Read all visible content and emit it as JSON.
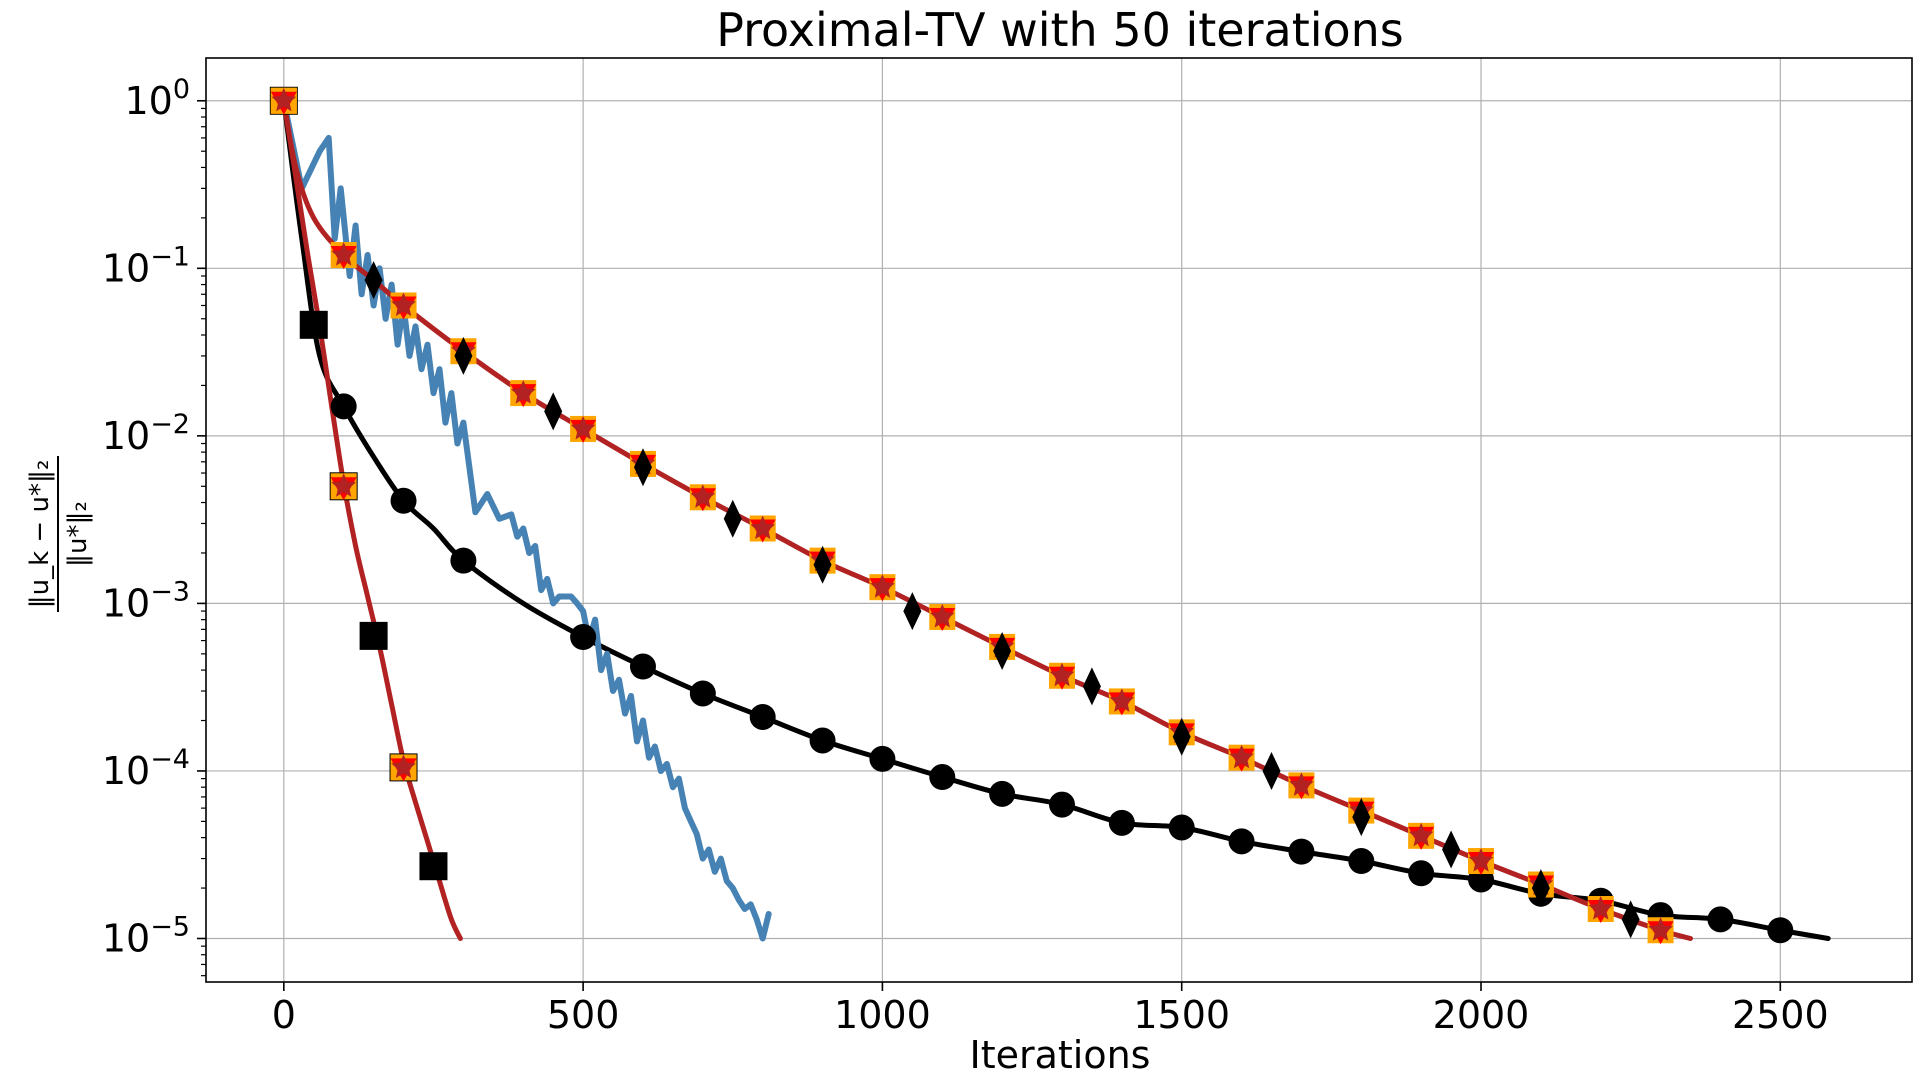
{
  "chart_data": {
    "type": "line",
    "title": "Proximal-TV with 50 iterations",
    "xlabel": "Iterations",
    "ylabel": {
      "numerator": "‖u_k − u*‖₂",
      "denominator": "‖u*‖₂"
    },
    "xscale": "linear",
    "yscale": "log",
    "xlim": [
      -130,
      2720
    ],
    "ylim": [
      5.5e-06,
      1.8
    ],
    "grid": true,
    "xticks": [
      0,
      500,
      1000,
      1500,
      2000,
      2500
    ],
    "xtick_labels": [
      "0",
      "500",
      "1000",
      "1500",
      "2000",
      "2500"
    ],
    "ytick_exponents": [
      0,
      -1,
      -2,
      -3,
      -4,
      -5
    ],
    "ytick_base": "10",
    "series": [
      {
        "name": "black-line-circles",
        "color": "#000000",
        "marker": "circle",
        "x": [
          0,
          30,
          60,
          100,
          150,
          200,
          250,
          300,
          400,
          500,
          600,
          700,
          800,
          900,
          1000,
          1100,
          1200,
          1300,
          1400,
          1500,
          1600,
          1700,
          1800,
          1900,
          2000,
          2100,
          2200,
          2300,
          2400,
          2500,
          2580
        ],
        "y": [
          1.0,
          0.15,
          0.03,
          0.015,
          0.0075,
          0.0041,
          0.0028,
          0.0018,
          0.001,
          0.00063,
          0.00042,
          0.00029,
          0.00021,
          0.000152,
          0.000118,
          9.2e-05,
          7.3e-05,
          6.3e-05,
          4.9e-05,
          4.6e-05,
          3.8e-05,
          3.3e-05,
          2.9e-05,
          2.45e-05,
          2.25e-05,
          1.85e-05,
          1.68e-05,
          1.38e-05,
          1.3e-05,
          1.12e-05,
          1e-05
        ],
        "marker_x": [
          100,
          200,
          300,
          500,
          600,
          700,
          800,
          900,
          1000,
          1100,
          1200,
          1300,
          1400,
          1500,
          1600,
          1700,
          1800,
          1900,
          2000,
          2100,
          2200,
          2300,
          2400,
          2500
        ],
        "marker_y": [
          0.015,
          0.0041,
          0.0018,
          0.00063,
          0.00042,
          0.00029,
          0.00021,
          0.000152,
          0.000118,
          9.2e-05,
          7.3e-05,
          6.3e-05,
          4.9e-05,
          4.6e-05,
          3.8e-05,
          3.3e-05,
          2.9e-05,
          2.45e-05,
          2.25e-05,
          1.85e-05,
          1.68e-05,
          1.38e-05,
          1.3e-05,
          1.12e-05
        ]
      },
      {
        "name": "steelblue-noisy",
        "color": "#4682b4",
        "marker": "none",
        "x": [
          0,
          30,
          60,
          75,
          85,
          95,
          110,
          120,
          130,
          140,
          150,
          160,
          170,
          180,
          190,
          200,
          210,
          220,
          230,
          240,
          250,
          260,
          270,
          280,
          290,
          300,
          320,
          340,
          360,
          380,
          390,
          400,
          410,
          420,
          430,
          440,
          450,
          460,
          480,
          490,
          500,
          510,
          520,
          530,
          540,
          550,
          560,
          570,
          580,
          590,
          600,
          610,
          620,
          630,
          640,
          650,
          660,
          670,
          680,
          690,
          700,
          710,
          720,
          730,
          740,
          750,
          760,
          770,
          780,
          790,
          800,
          810
        ],
        "y": [
          1.0,
          0.3,
          0.5,
          0.6,
          0.15,
          0.3,
          0.09,
          0.18,
          0.07,
          0.12,
          0.06,
          0.1,
          0.05,
          0.08,
          0.035,
          0.06,
          0.03,
          0.045,
          0.025,
          0.035,
          0.018,
          0.025,
          0.012,
          0.018,
          0.009,
          0.012,
          0.0035,
          0.0045,
          0.0032,
          0.0034,
          0.0025,
          0.0028,
          0.002,
          0.0022,
          0.0012,
          0.0014,
          0.001,
          0.0011,
          0.0011,
          0.001,
          0.0009,
          0.0006,
          0.0008,
          0.0004,
          0.0005,
          0.0003,
          0.00035,
          0.00022,
          0.00028,
          0.00015,
          0.0002,
          0.00012,
          0.00014,
          0.0001,
          0.00011,
          8e-05,
          9e-05,
          6e-05,
          5e-05,
          4.2e-05,
          3e-05,
          3.4e-05,
          2.5e-05,
          3e-05,
          2.2e-05,
          2e-05,
          1.7e-05,
          1.5e-05,
          1.6e-05,
          1.3e-05,
          1e-05,
          1.4e-05
        ]
      },
      {
        "name": "fast-red-squares",
        "color": "#b22222",
        "marker": "square",
        "x": [
          0,
          20,
          40,
          60,
          80,
          100,
          120,
          140,
          160,
          180,
          200,
          220,
          240,
          260,
          280,
          295
        ],
        "y": [
          1.0,
          0.35,
          0.12,
          0.045,
          0.015,
          0.0052,
          0.0022,
          0.0011,
          0.00055,
          0.00025,
          0.000115,
          6.5e-05,
          3.8e-05,
          2.2e-05,
          1.3e-05,
          1e-05
        ],
        "marker_x": [
          0,
          50,
          100,
          150,
          200,
          250
        ],
        "marker_y": [
          1.0,
          0.046,
          0.005,
          0.00064,
          0.000105,
          2.7e-05
        ]
      },
      {
        "name": "slow-red-stars",
        "color": "#b22222",
        "marker": "star",
        "x": [
          0,
          20,
          50,
          100,
          150,
          200,
          300,
          400,
          500,
          600,
          700,
          800,
          900,
          1000,
          1100,
          1200,
          1300,
          1400,
          1500,
          1600,
          1700,
          1800,
          1900,
          2000,
          2100,
          2200,
          2300,
          2350
        ],
        "y": [
          1.0,
          0.4,
          0.2,
          0.12,
          0.085,
          0.06,
          0.032,
          0.018,
          0.011,
          0.0068,
          0.0043,
          0.0028,
          0.0018,
          0.00125,
          0.00083,
          0.00055,
          0.00037,
          0.00026,
          0.00017,
          0.00012,
          8.2e-05,
          5.8e-05,
          4.1e-05,
          2.9e-05,
          2.1e-05,
          1.5e-05,
          1.12e-05,
          1e-05
        ],
        "marker_x": [
          0,
          100,
          200,
          300,
          400,
          500,
          600,
          700,
          800,
          900,
          1000,
          1100,
          1200,
          1300,
          1400,
          1500,
          1600,
          1700,
          1800,
          1900,
          2000,
          2100,
          2200,
          2300
        ],
        "marker_y": [
          1.0,
          0.12,
          0.06,
          0.032,
          0.018,
          0.011,
          0.0068,
          0.0043,
          0.0028,
          0.0018,
          0.00125,
          0.00083,
          0.00055,
          0.00037,
          0.00026,
          0.00017,
          0.00012,
          8.2e-05,
          5.8e-05,
          4.1e-05,
          2.9e-05,
          2.1e-05,
          1.5e-05,
          1.12e-05
        ]
      },
      {
        "name": "black-diamonds",
        "color": "#000000",
        "marker": "diamond",
        "marker_x": [
          150,
          300,
          450,
          600,
          750,
          900,
          1050,
          1200,
          1350,
          1500,
          1650,
          1800,
          1950,
          2100,
          2250
        ],
        "marker_y": [
          0.085,
          0.03,
          0.014,
          0.0065,
          0.0032,
          0.0017,
          0.0009,
          0.00052,
          0.00032,
          0.00016,
          0.0001,
          5.3e-05,
          3.4e-05,
          2e-05,
          1.3e-05
        ]
      }
    ]
  }
}
